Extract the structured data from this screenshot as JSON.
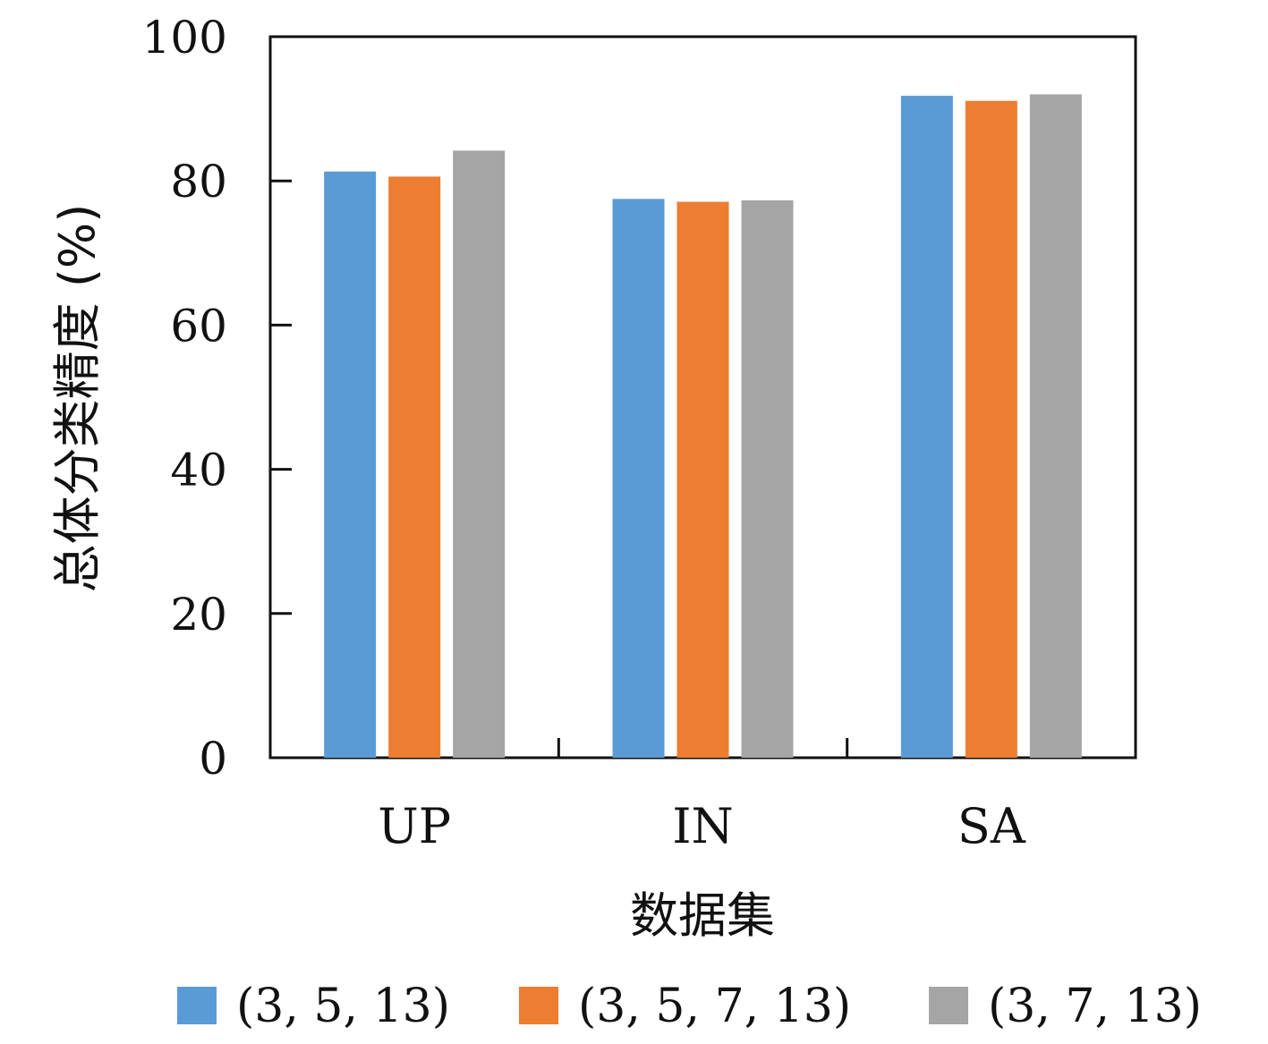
{
  "chart_data": {
    "type": "bar",
    "categories": [
      "UP",
      "IN",
      "SA"
    ],
    "series": [
      {
        "name": "(3, 5, 13)",
        "color": "#5B9BD5",
        "values": [
          81.3,
          77.5,
          91.8
        ]
      },
      {
        "name": "(3, 5, 7, 13)",
        "color": "#ED7D31",
        "values": [
          80.6,
          77.1,
          91.1
        ]
      },
      {
        "name": "(3, 7, 13)",
        "color": "#A5A5A5",
        "values": [
          84.2,
          77.3,
          92.0
        ]
      }
    ],
    "xlabel": "数据集",
    "ylabel": "总体分类精度 (%)",
    "ylim": [
      0,
      100
    ],
    "yticks": [
      0,
      20,
      40,
      60,
      80,
      100
    ],
    "grid": false,
    "legend_position": "bottom"
  }
}
